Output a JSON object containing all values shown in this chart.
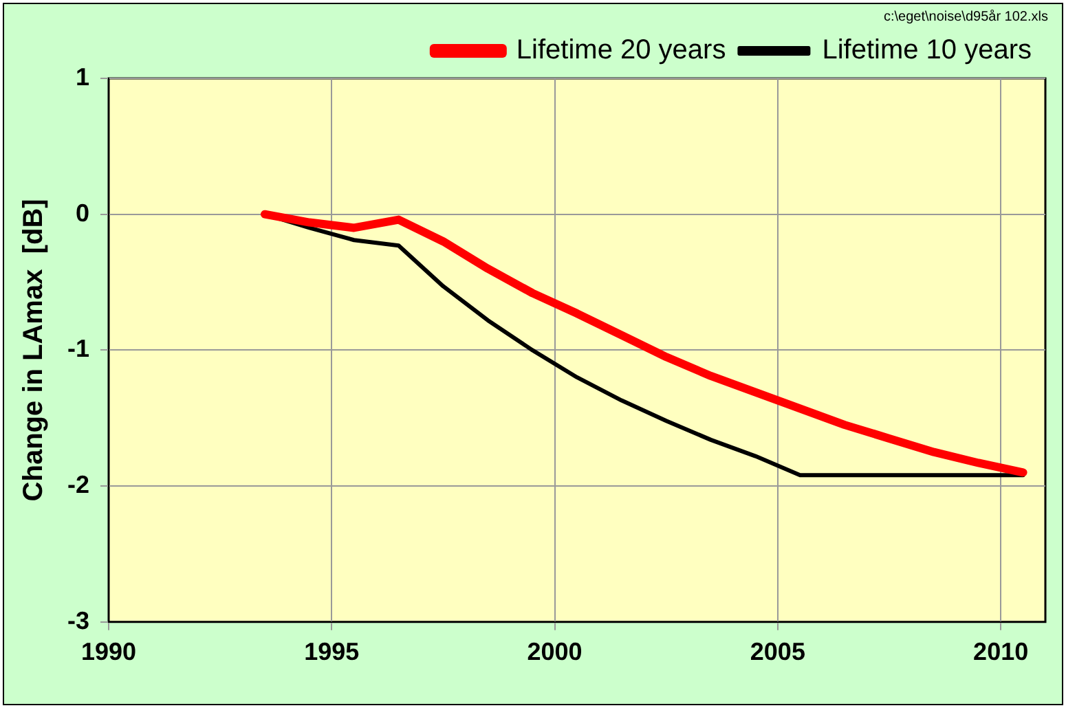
{
  "chart_data": {
    "type": "line",
    "ylabel": "Change in LAmax  [dB]",
    "annotations": [
      "c:\\eget\\noise\\d95år 102.xls"
    ],
    "xlim": [
      1990,
      2011
    ],
    "xticks": [
      1990,
      1995,
      2000,
      2005,
      2010
    ],
    "ylim": [
      -3,
      1
    ],
    "yticks": [
      -3,
      -2,
      -1,
      0,
      1
    ],
    "grid": true,
    "legend": "top right",
    "marker": "none",
    "line_style": "solid",
    "series": [
      {
        "name": "Lifetime 20 years",
        "color": "#ff0000",
        "x": [
          1993.5,
          1994.5,
          1995.5,
          1996.5,
          1997.5,
          1998.5,
          1999.5,
          2000.5,
          2001.5,
          2002.5,
          2003.5,
          2004.5,
          2005.5,
          2006.5,
          2007.5,
          2008.5,
          2009.5,
          2010.5
        ],
        "values": [
          0,
          -0.06,
          -0.1,
          -0.04,
          -0.2,
          -0.4,
          -0.58,
          -0.73,
          -0.89,
          -1.05,
          -1.19,
          -1.31,
          -1.43,
          -1.55,
          -1.65,
          -1.75,
          -1.83,
          -1.9
        ]
      },
      {
        "name": "Lifetime 10 years",
        "color": "#000000",
        "x": [
          1993.5,
          1994.5,
          1995.5,
          1996.5,
          1997.5,
          1998.5,
          1999.5,
          2000.5,
          2001.5,
          2002.5,
          2003.5,
          2004.5,
          2005.5,
          2006.5,
          2007.5,
          2008.5,
          2009.5,
          2010.5
        ],
        "values": [
          0,
          -0.1,
          -0.19,
          -0.23,
          -0.53,
          -0.78,
          -1.0,
          -1.2,
          -1.37,
          -1.52,
          -1.66,
          -1.78,
          -1.92,
          -1.92,
          -1.92,
          -1.92,
          -1.92,
          -1.92
        ]
      }
    ]
  }
}
